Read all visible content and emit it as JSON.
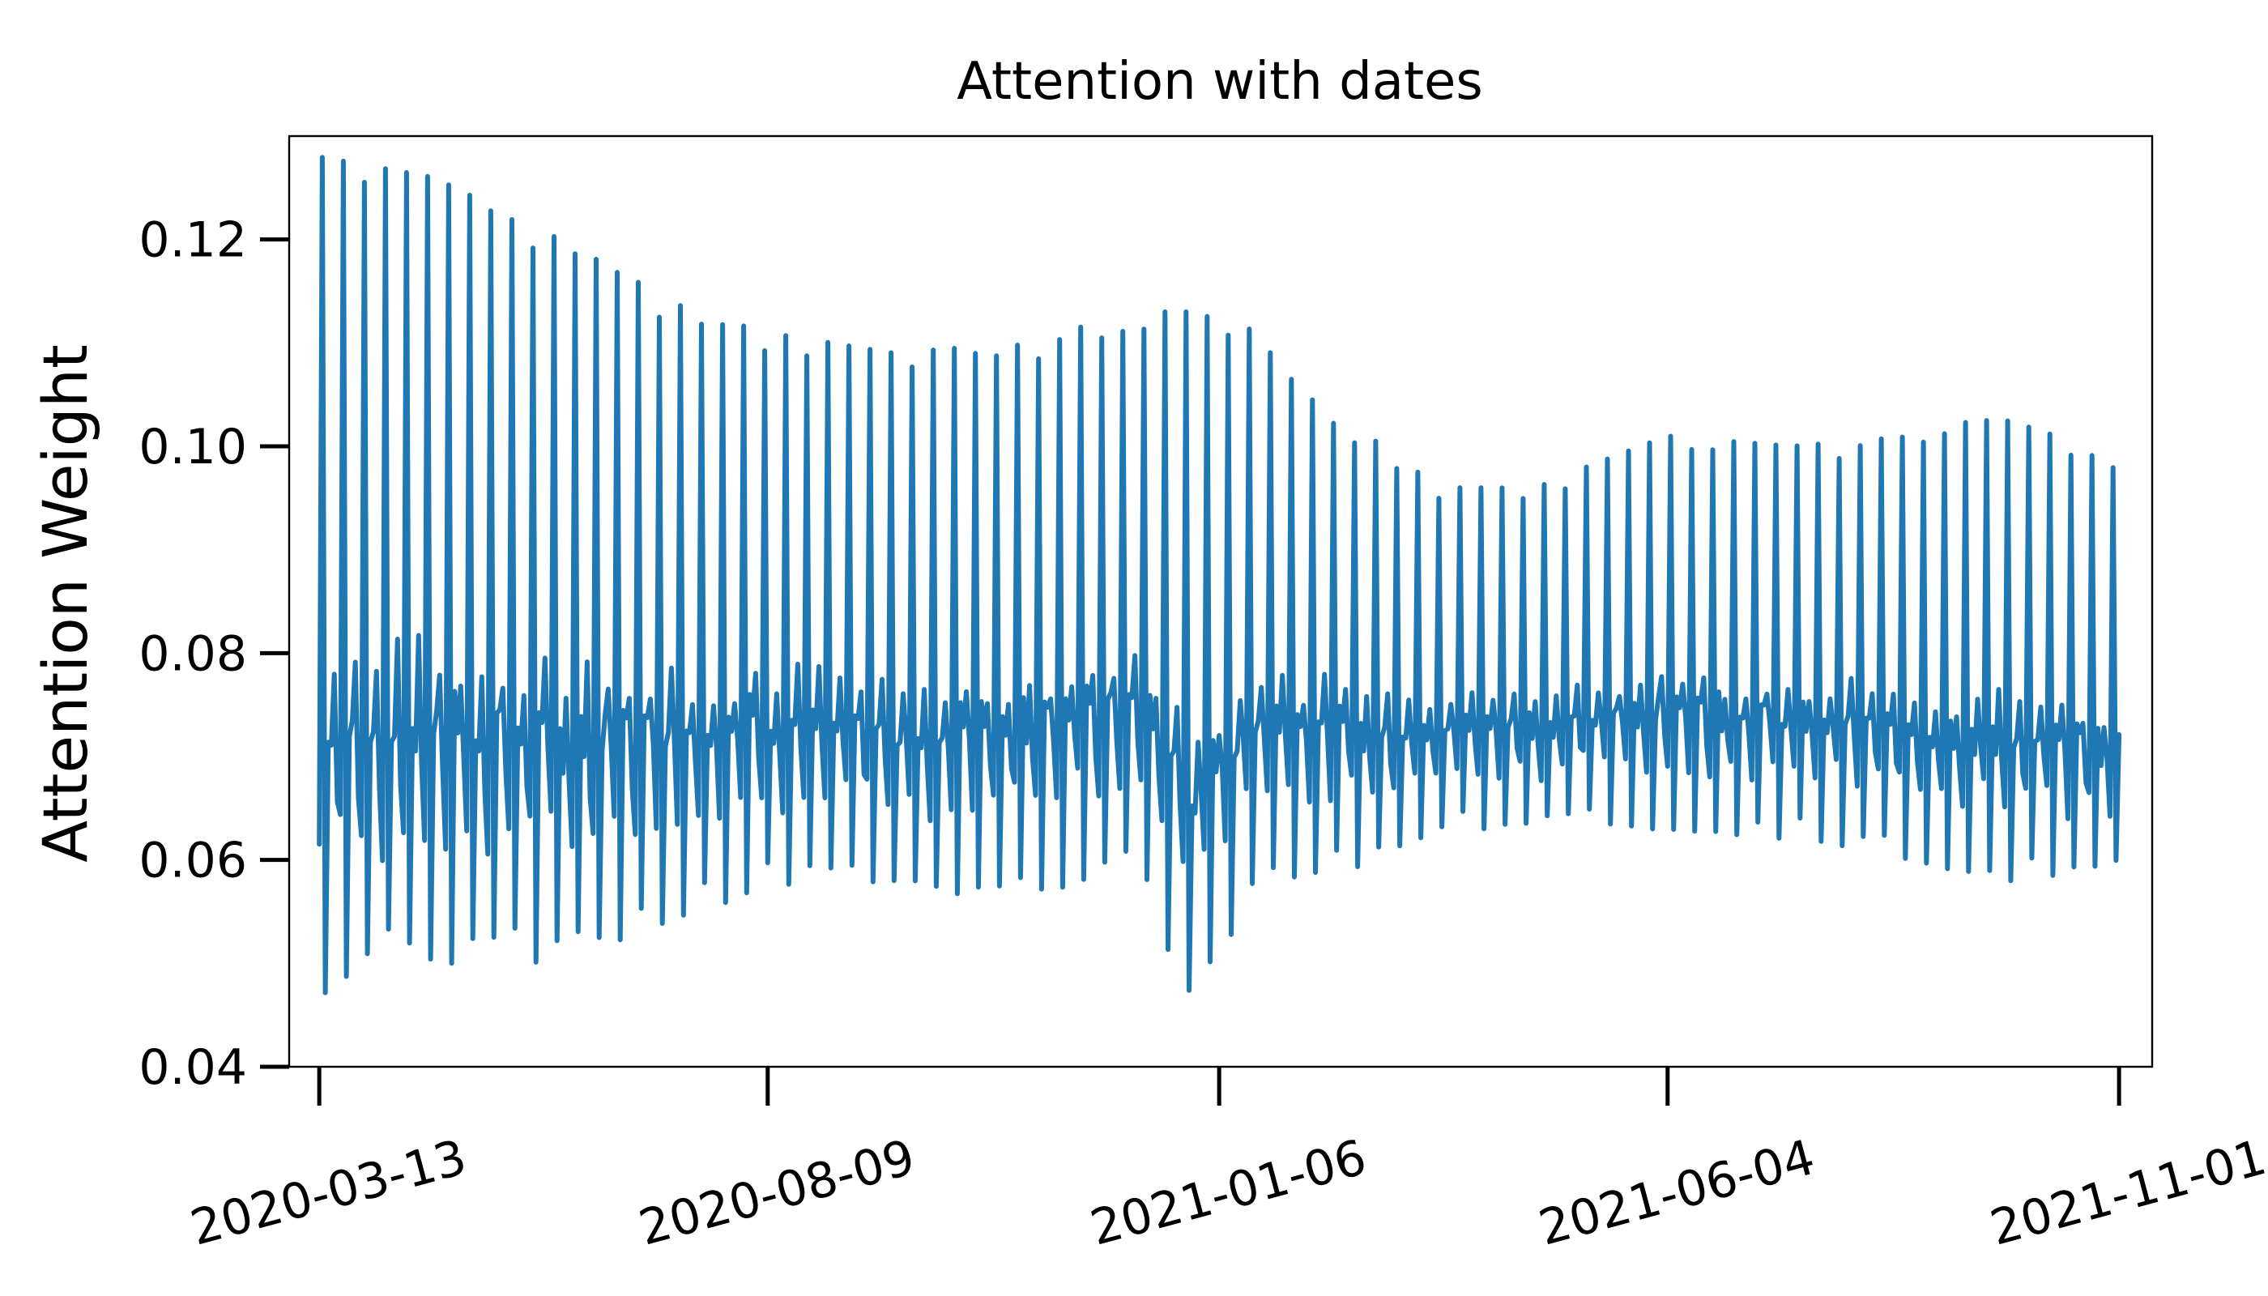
{
  "chart_data": {
    "type": "line",
    "title": "Attention with dates",
    "xlabel": "",
    "ylabel": "Attention Weight",
    "ylim": [
      0.04,
      0.13
    ],
    "xlim": [
      "2020-03-03",
      "2021-11-12"
    ],
    "grid": false,
    "legend": "none",
    "yticks": [
      0.04,
      0.06,
      0.08,
      0.1,
      0.12
    ],
    "ytick_labels": [
      "0.04",
      "0.06",
      "0.08",
      "0.10",
      "0.12"
    ],
    "xticks": [
      "2020-03-13",
      "2020-08-09",
      "2021-01-06",
      "2021-06-04",
      "2021-11-01"
    ],
    "xtick_labels": [
      "2020-03-13",
      "2020-08-09",
      "2021-01-06",
      "2021-06-04",
      "2021-11-01"
    ],
    "xtick_rotation": 15,
    "colors": {
      "line": "#1f77b4",
      "axes": "#000000"
    },
    "series": [
      {
        "start_date": "2020-03-13",
        "end_date": "2021-11-01",
        "frequency": "daily",
        "period_days": 7,
        "envelope": [
          {
            "date": "2020-03-13",
            "high": 0.128,
            "low": 0.047
          },
          {
            "date": "2020-04-20",
            "high": 0.126,
            "low": 0.05
          },
          {
            "date": "2020-06-01",
            "high": 0.12,
            "low": 0.05
          },
          {
            "date": "2020-07-15",
            "high": 0.113,
            "low": 0.055
          },
          {
            "date": "2020-08-09",
            "high": 0.111,
            "low": 0.057
          },
          {
            "date": "2020-09-20",
            "high": 0.109,
            "low": 0.056
          },
          {
            "date": "2020-11-01",
            "high": 0.11,
            "low": 0.057
          },
          {
            "date": "2020-12-10",
            "high": 0.113,
            "low": 0.058
          },
          {
            "date": "2020-12-28",
            "high": 0.113,
            "low": 0.046
          },
          {
            "date": "2021-01-20",
            "high": 0.111,
            "low": 0.058
          },
          {
            "date": "2021-02-20",
            "high": 0.102,
            "low": 0.059
          },
          {
            "date": "2021-03-20",
            "high": 0.096,
            "low": 0.063
          },
          {
            "date": "2021-04-20",
            "high": 0.096,
            "low": 0.063
          },
          {
            "date": "2021-06-04",
            "high": 0.101,
            "low": 0.063
          },
          {
            "date": "2021-07-15",
            "high": 0.1,
            "low": 0.062
          },
          {
            "date": "2021-08-25",
            "high": 0.101,
            "low": 0.06
          },
          {
            "date": "2021-09-20",
            "high": 0.103,
            "low": 0.058
          },
          {
            "date": "2021-11-01",
            "high": 0.099,
            "low": 0.058
          }
        ]
      }
    ]
  }
}
